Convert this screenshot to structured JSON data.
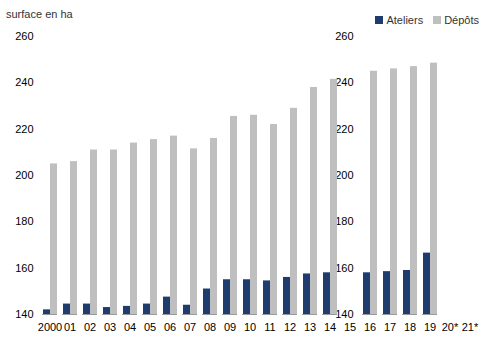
{
  "chart_data": {
    "type": "bar",
    "y_label": "surface en ha",
    "categories": [
      "2000",
      "01",
      "02",
      "03",
      "04",
      "05",
      "06",
      "07",
      "08",
      "09",
      "10",
      "11",
      "12",
      "13",
      "14",
      "15",
      "16",
      "17",
      "18",
      "19",
      "20*",
      "21*"
    ],
    "series": [
      {
        "name": "Ateliers",
        "color": "#1f3c6e",
        "values": [
          142,
          144.5,
          144.5,
          143,
          143.5,
          144.5,
          147.5,
          144,
          151,
          155,
          155,
          154.5,
          156,
          157.5,
          158,
          null,
          158,
          158.5,
          159,
          166.5,
          null,
          null
        ]
      },
      {
        "name": "Dépôts",
        "color": "#bfbfbf",
        "values": [
          205,
          206,
          211,
          211,
          214,
          215.5,
          217,
          211.5,
          216,
          225.5,
          226,
          222,
          229,
          238,
          241.5,
          null,
          245,
          246,
          247,
          248.5,
          null,
          null
        ]
      }
    ],
    "ylim": [
      140,
      260
    ],
    "yticks": [
      140,
      160,
      180,
      200,
      220,
      240,
      260
    ],
    "grid": false,
    "legend": "top-right"
  }
}
